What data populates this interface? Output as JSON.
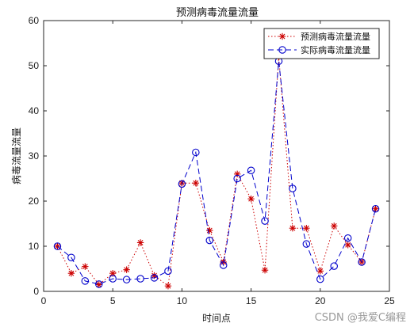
{
  "chart_data": {
    "type": "line",
    "title": "预测病毒流量流量",
    "xlabel": "时间点",
    "ylabel": "病毒流量流量",
    "xlim": [
      0,
      25
    ],
    "ylim": [
      0,
      60
    ],
    "xticks": [
      0,
      5,
      10,
      15,
      20,
      25
    ],
    "yticks": [
      0,
      10,
      20,
      30,
      40,
      50,
      60
    ],
    "legend_position": "top-right",
    "grid": false,
    "x": [
      1,
      2,
      3,
      4,
      5,
      6,
      7,
      8,
      9,
      10,
      11,
      12,
      13,
      14,
      15,
      16,
      17,
      18,
      19,
      20,
      21,
      22,
      23,
      24
    ],
    "series": [
      {
        "name": "预测病毒流量流量",
        "color": "#cc0000",
        "line_style": "dotted",
        "marker": "asterisk",
        "values": [
          10,
          4,
          5.5,
          1.5,
          4,
          4.8,
          10.8,
          3.5,
          1.2,
          24,
          24,
          13.5,
          6.5,
          26,
          20.5,
          4.7,
          52,
          14,
          14,
          4.5,
          14.5,
          10.3,
          6.5,
          18.3
        ]
      },
      {
        "name": "实际病毒流量流量",
        "color": "#0000cc",
        "line_style": "dashed",
        "marker": "circle",
        "values": [
          10,
          7.5,
          2.3,
          1.6,
          2.8,
          2.6,
          2.8,
          3,
          4.5,
          23.8,
          30.8,
          11.3,
          5.8,
          25,
          26.8,
          15.6,
          51,
          22.8,
          10.5,
          2.7,
          5.6,
          11.8,
          6.5,
          18.3
        ]
      }
    ]
  },
  "watermark": "CSDN @我爱C编程"
}
